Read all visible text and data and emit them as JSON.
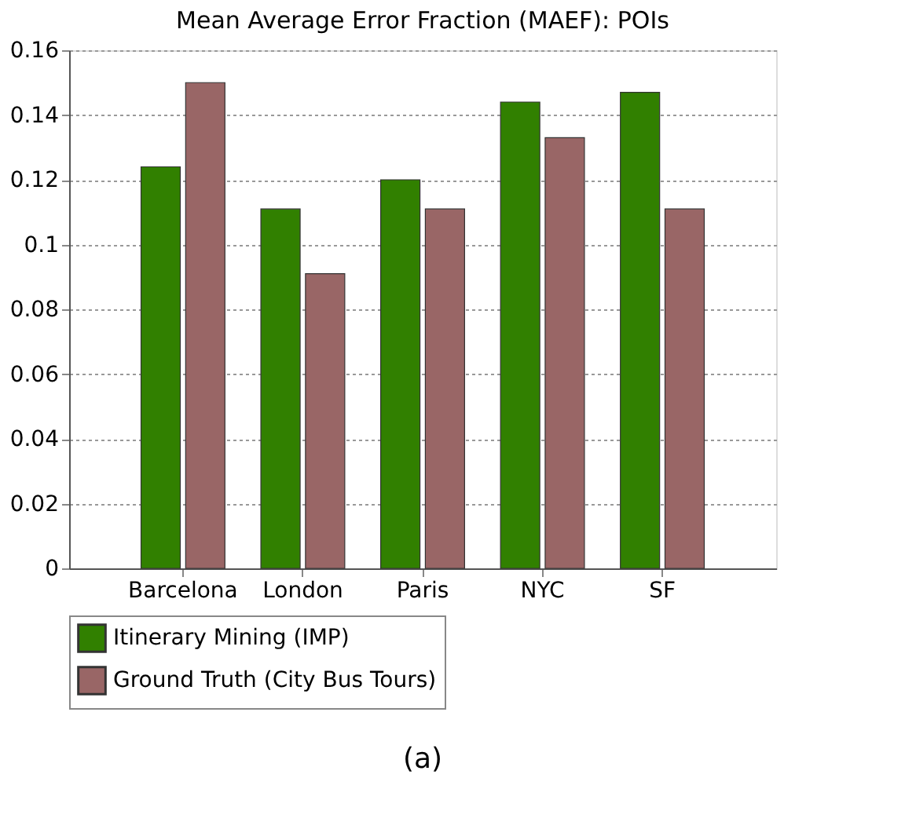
{
  "chart_data": {
    "type": "bar",
    "title": "Mean Average Error Fraction (MAEF): POIs",
    "categories": [
      "Barcelona",
      "London",
      "Paris",
      "NYC",
      "SF"
    ],
    "series": [
      {
        "name": "Itinerary Mining (IMP)",
        "color": "#318000",
        "values": [
          0.124,
          0.111,
          0.12,
          0.144,
          0.147
        ]
      },
      {
        "name": "Ground Truth (City Bus Tours)",
        "color": "#996666",
        "values": [
          0.15,
          0.091,
          0.111,
          0.133,
          0.111
        ]
      }
    ],
    "ylim": [
      0,
      0.16
    ],
    "yticks": [
      0,
      0.02,
      0.04,
      0.06,
      0.08,
      0.1,
      0.12,
      0.14,
      0.16
    ],
    "grid": "y",
    "legend": "bottom left",
    "annotations": [
      "(a)"
    ]
  }
}
